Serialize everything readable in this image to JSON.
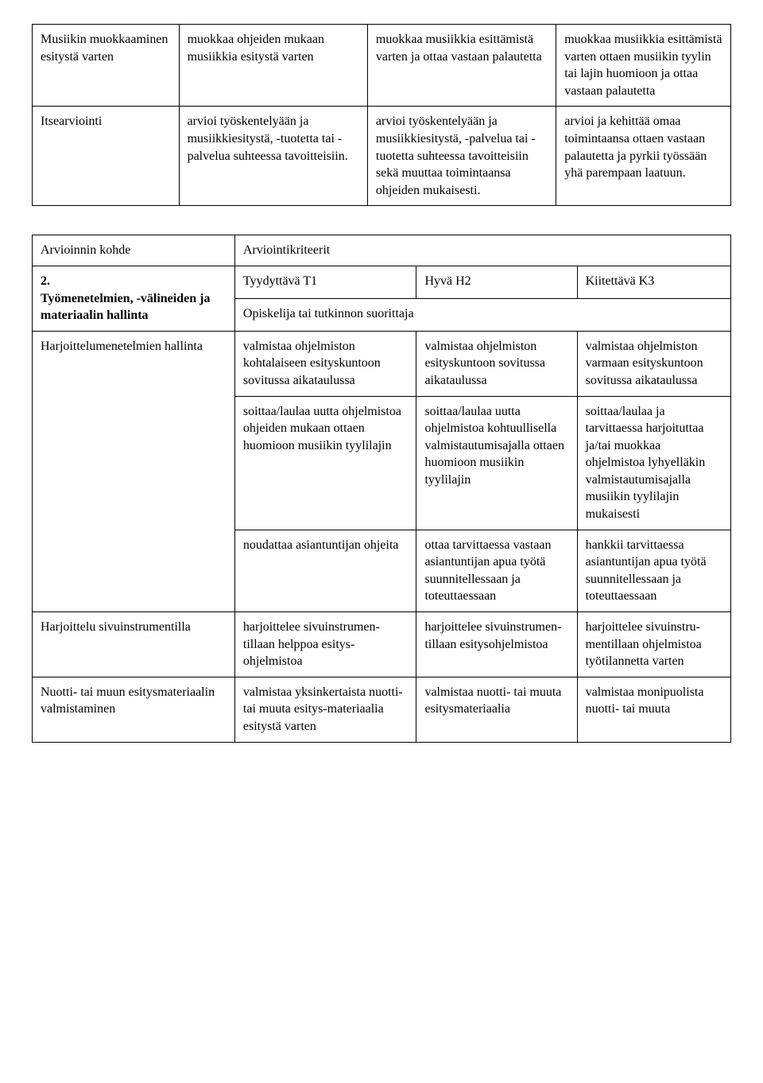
{
  "table1": {
    "col_widths": [
      "21%",
      "27%",
      "27%",
      "25%"
    ],
    "rows": [
      {
        "cells": [
          "Musiikin muokkaaminen esitystä varten",
          "muokkaa ohjeiden mukaan musiikkia esitystä varten",
          "muokkaa musiikkia esittämistä varten ja ottaa vastaan palautetta",
          "muokkaa musiikkia esittämistä varten ottaen musiikin tyylin tai lajin huomioon ja ottaa vastaan palautetta"
        ]
      },
      {
        "cells": [
          "Itsearviointi",
          "arvioi työskentelyään ja musiikkiesitystä, -tuotetta tai -palvelua suhteessa tavoitteisiin.",
          "arvioi työskentelyään ja musiikkiesitystä, -palvelua tai -tuotetta suhteessa tavoitteisiin sekä muuttaa toimintaansa ohjeiden mukaisesti.",
          "arvioi ja kehittää omaa toimintaansa ottaen vastaan palautetta ja pyrkii työssään yhä parempaan laatuun."
        ]
      }
    ]
  },
  "table2": {
    "col_widths": [
      "29%",
      "26%",
      "23%",
      "22%"
    ],
    "header": {
      "left": "Arvioinnin kohde",
      "right": "Arviointikriteerit"
    },
    "section_title": "2. Työmenetelmien, -välineiden ja materiaalin hallinta",
    "section_number": "2.",
    "section_rest": "Työmenetelmien, -välineiden ja materiaalin hallinta",
    "levels": [
      "Tyydyttävä T1",
      "Hyvä H2",
      "Kiitettävä K3"
    ],
    "subheader": "Opiskelija tai tutkinnon suorittaja",
    "rows": [
      {
        "label": "Harjoittelumenetelmien hallinta",
        "subrows": [
          [
            "valmistaa ohjelmiston kohtalaiseen esityskuntoon sovitussa aikataulussa",
            "valmistaa ohjelmiston esityskuntoon sovitussa aikataulussa",
            "valmistaa ohjelmiston varmaan esityskuntoon sovitussa aikataulussa"
          ],
          [
            "soittaa/laulaa uutta ohjelmistoa ohjeiden mukaan ottaen huomioon musiikin tyylilajin",
            "soittaa/laulaa uutta ohjelmistoa kohtuullisella valmistautumisajalla ottaen huomioon musiikin tyylilajin",
            "soittaa/laulaa ja tarvittaessa harjoituttaa ja/tai muokkaa ohjelmistoa lyhyelläkin valmistautumisajalla musiikin tyylilajin mukaisesti"
          ],
          [
            "noudattaa asiantuntijan ohjeita",
            "ottaa tarvittaessa vastaan asiantuntijan apua työtä suunnitellessaan ja toteuttaessaan",
            "hankkii tarvittaessa asiantuntijan apua työtä suunnitellessaan ja toteuttaessaan"
          ]
        ]
      },
      {
        "label": "Harjoittelu sivuinstrumentilla",
        "subrows": [
          [
            "harjoittelee sivuinstrumen-tillaan helppoa esitys-ohjelmistoa",
            "harjoittelee sivuinstrumen-tillaan esitysohjelmistoa",
            "harjoittelee sivuinstru-mentillaan ohjelmistoa työtilannetta varten"
          ]
        ]
      },
      {
        "label": "Nuotti- tai muun esitysmateriaalin valmistaminen",
        "subrows": [
          [
            "valmistaa yksinkertaista nuotti- tai muuta esitys-materiaalia esitystä varten",
            "valmistaa nuotti- tai muuta esitysmateriaalia",
            "valmistaa monipuolista nuotti- tai muuta"
          ]
        ]
      }
    ]
  }
}
